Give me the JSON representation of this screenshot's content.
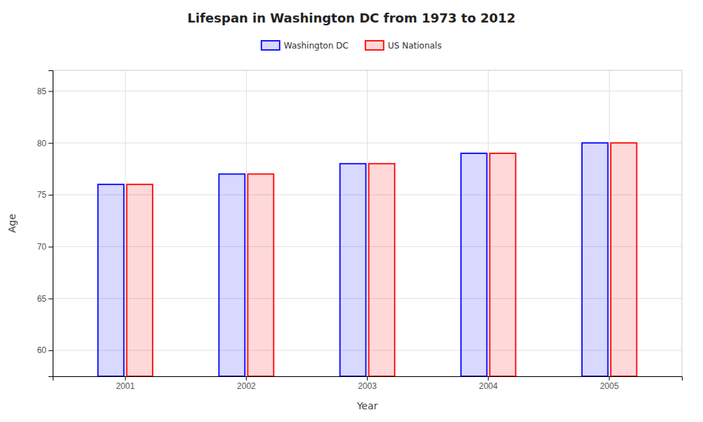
{
  "chart_data": {
    "type": "bar",
    "title": "Lifespan in Washington DC from 1973 to 2012",
    "xlabel": "Year",
    "ylabel": "Age",
    "categories": [
      "2001",
      "2002",
      "2003",
      "2004",
      "2005"
    ],
    "series": [
      {
        "name": "Washington DC",
        "color": "#0000ff",
        "values": [
          76.0,
          77.0,
          78.0,
          79.0,
          80.0
        ]
      },
      {
        "name": "US Nationals",
        "color": "#ff0000",
        "values": [
          76.0,
          77.0,
          78.0,
          79.0,
          80.0
        ]
      }
    ],
    "ylim": [
      57.5,
      87
    ],
    "yticks": [
      60,
      65,
      70,
      75,
      80,
      85
    ],
    "grid": true,
    "legend": "top"
  }
}
